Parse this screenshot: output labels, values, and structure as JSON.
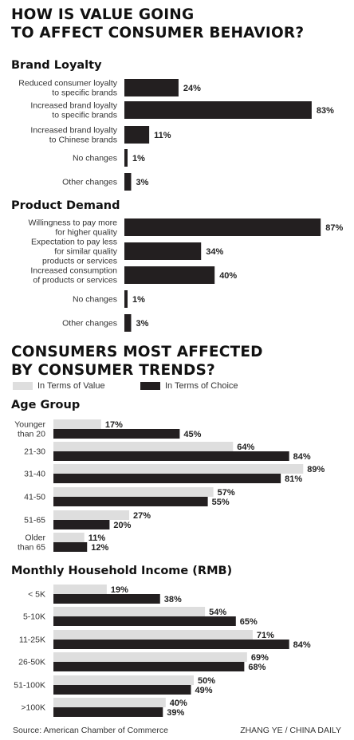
{
  "title1": "HOW IS VALUE GOING\nTO AFFECT CONSUMER BEHAVIOR?",
  "title2": "CONSUMERS MOST AFFECTED\nBY CONSUMER TRENDS?",
  "legend": {
    "value_label": "In Terms of Value",
    "choice_label": "In Terms of Choice",
    "value_color": "#dedede",
    "choice_color": "#231f20"
  },
  "source": "Source: American Chamber of Commerce",
  "credit": "ZHANG YE / CHINA DAILY",
  "chart_data": [
    {
      "type": "bar",
      "orientation": "horizontal",
      "title": "Brand Loyalty",
      "unit": "%",
      "categories": [
        "Reduced consumer loyalty\nto specific brands",
        "Increased brand loyalty\nto specific brands",
        "Increased brand loyalty\nto Chinese brands",
        "No changes",
        "Other changes"
      ],
      "values": [
        24,
        83,
        11,
        1,
        3
      ],
      "color": "#231f20"
    },
    {
      "type": "bar",
      "orientation": "horizontal",
      "title": "Product Demand",
      "unit": "%",
      "categories": [
        "Willingness to pay more\nfor higher quality",
        "Expectation to pay less\nfor similar quality\nproducts or services",
        "Increased consumption\nof products or services",
        "No changes",
        "Other changes"
      ],
      "values": [
        87,
        34,
        40,
        1,
        3
      ],
      "color": "#231f20"
    },
    {
      "type": "bar",
      "orientation": "horizontal",
      "title": "Age Group",
      "unit": "%",
      "categories": [
        "Younger\nthan 20",
        "21-30",
        "31-40",
        "41-50",
        "51-65",
        "Older\nthan 65"
      ],
      "series": [
        {
          "name": "In Terms of Value",
          "values": [
            17,
            64,
            89,
            57,
            27,
            11
          ],
          "color": "#dedede"
        },
        {
          "name": "In Terms of Choice",
          "values": [
            45,
            84,
            81,
            55,
            20,
            12
          ],
          "color": "#231f20"
        }
      ]
    },
    {
      "type": "bar",
      "orientation": "horizontal",
      "title": "Monthly Household Income (RMB)",
      "unit": "%",
      "categories": [
        "< 5K",
        "5-10K",
        "11-25K",
        "26-50K",
        "51-100K",
        ">100K"
      ],
      "series": [
        {
          "name": "In Terms of Value",
          "values": [
            19,
            54,
            71,
            69,
            50,
            40
          ],
          "color": "#dedede"
        },
        {
          "name": "In Terms of Choice",
          "values": [
            38,
            65,
            84,
            68,
            49,
            39
          ],
          "color": "#231f20"
        }
      ]
    }
  ]
}
